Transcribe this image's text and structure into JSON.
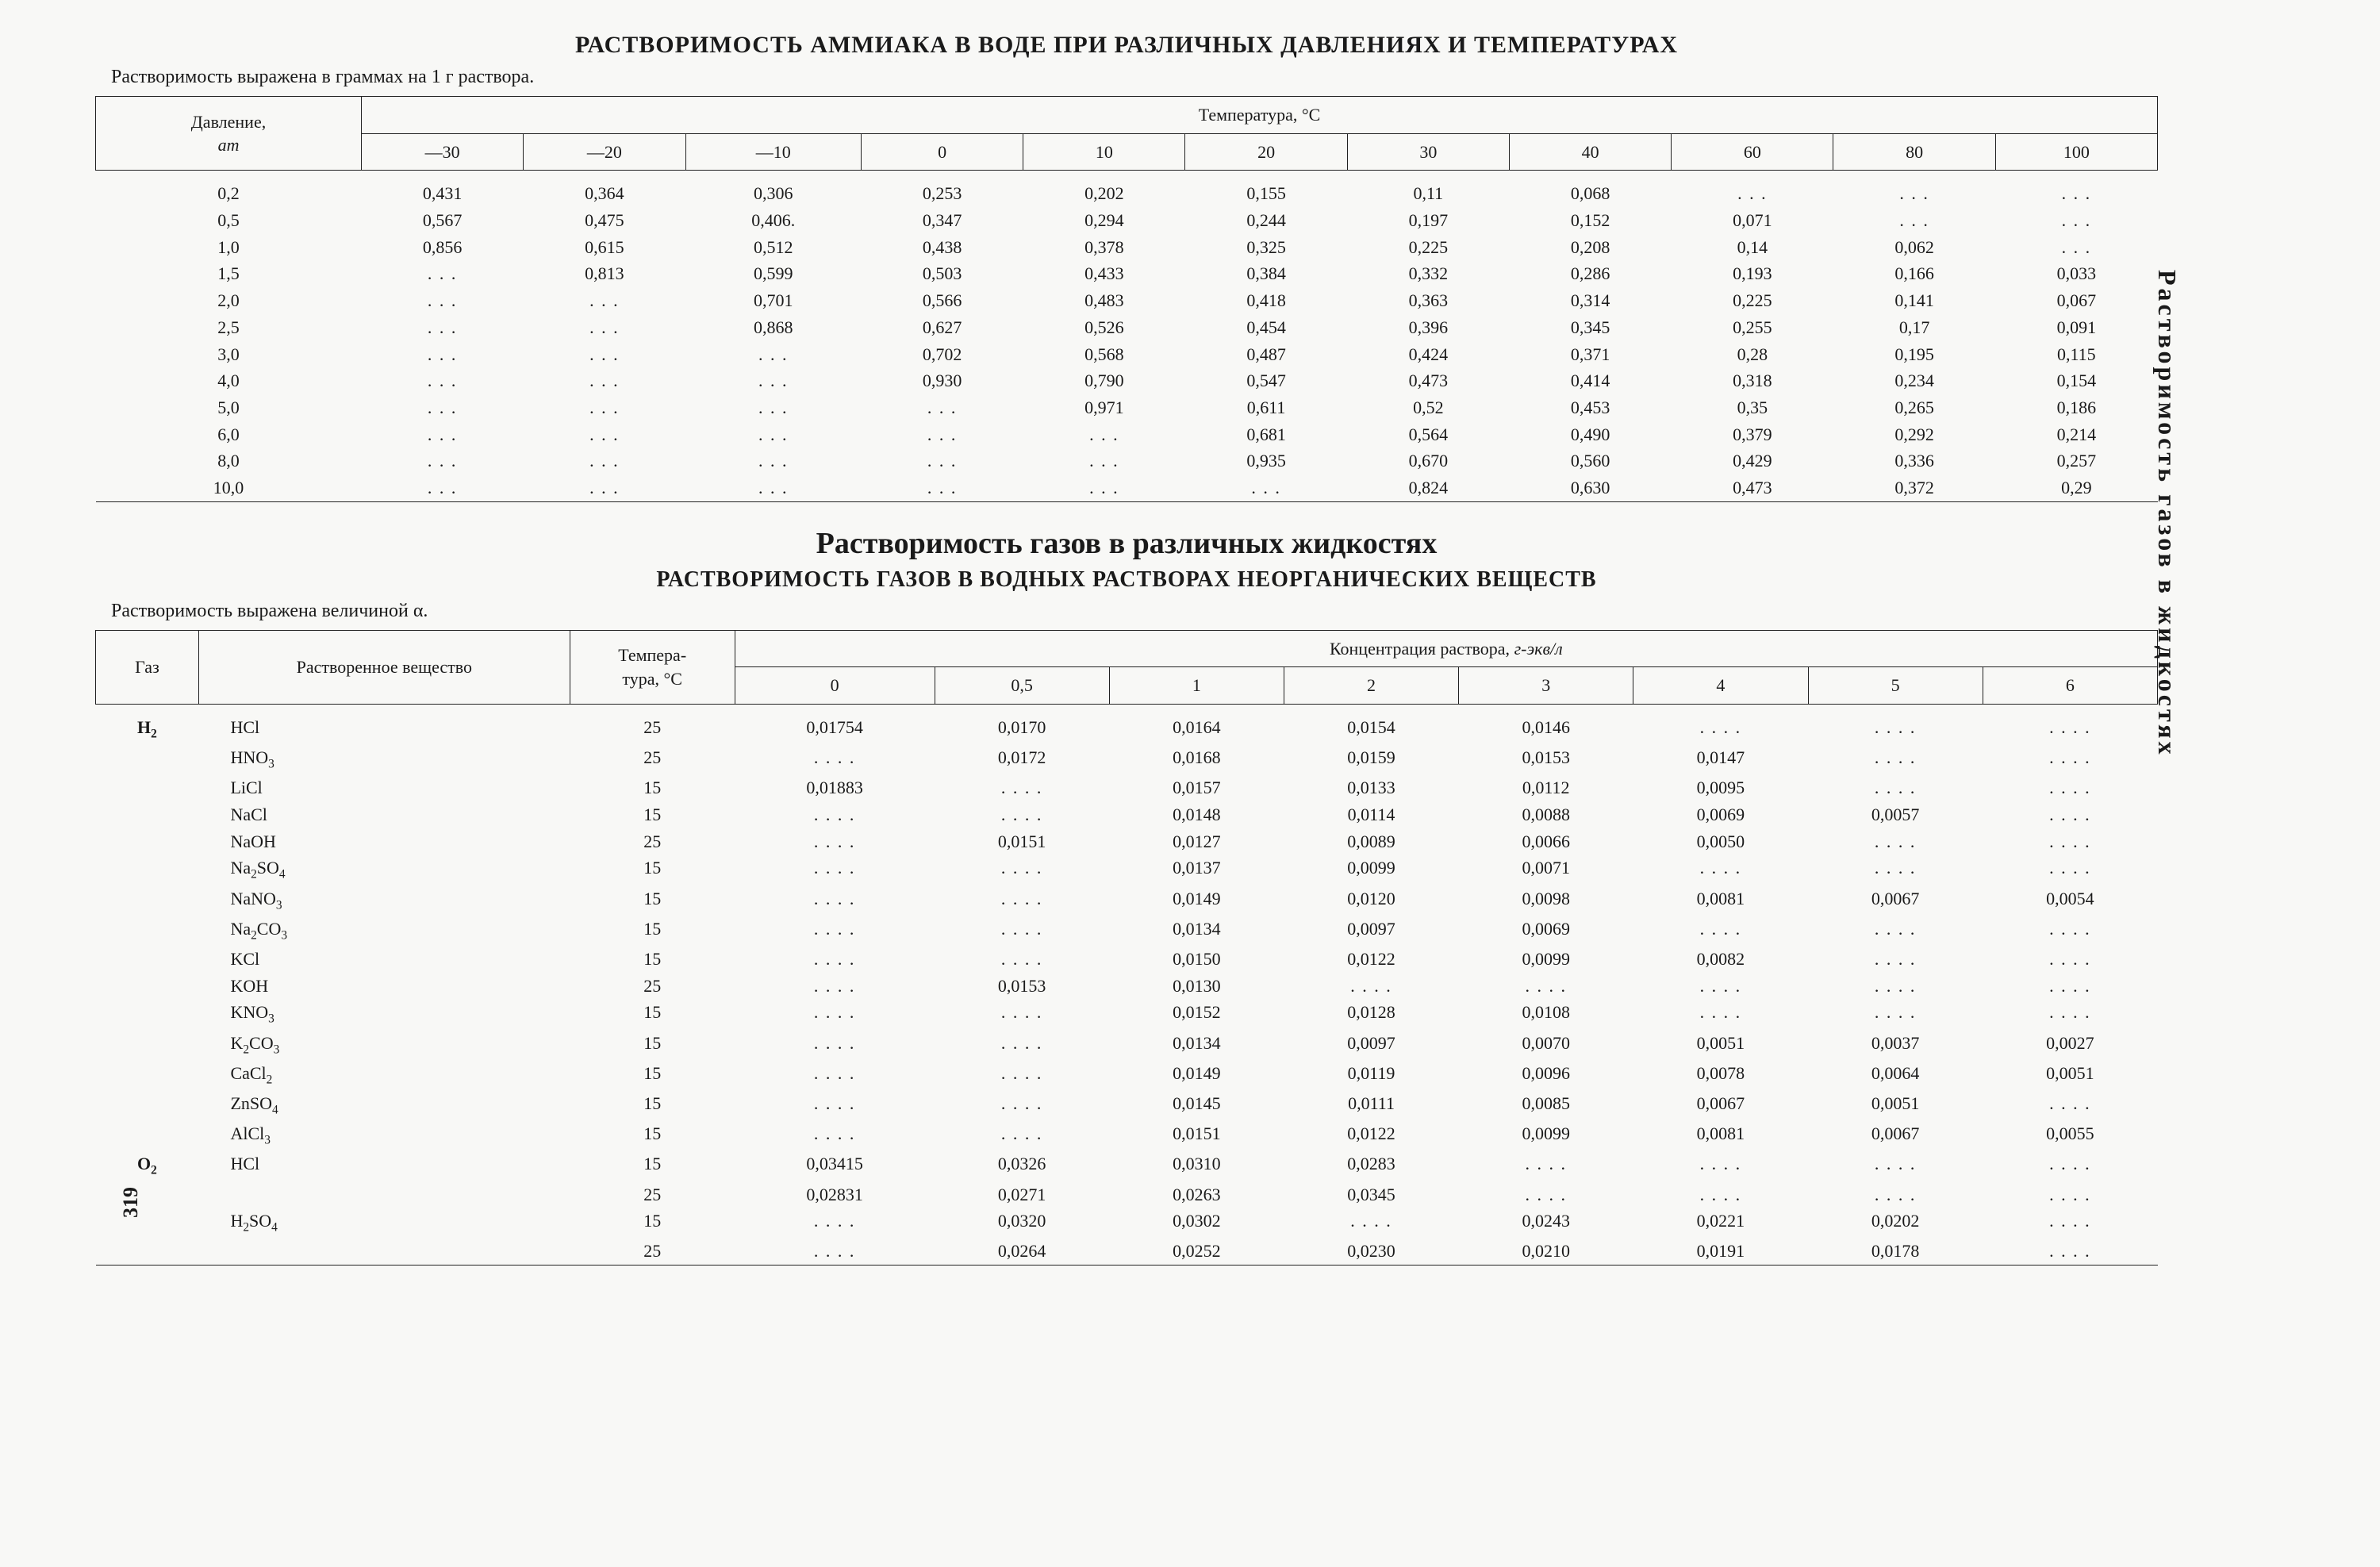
{
  "page_number": "319",
  "vertical_margin_text": "Растворимость газов в жидкостях",
  "table1": {
    "title": "РАСТВОРИМОСТЬ АММИАКА В ВОДЕ ПРИ РАЗЛИЧНЫХ ДАВЛЕНИЯХ И ТЕМПЕРАТУРАХ",
    "subtitle": "Растворимость выражена в граммах на 1 г раствора.",
    "header_row_label": "Давление, ат",
    "header_span_label": "Температура, °C",
    "temp_columns": [
      "—30",
      "—20",
      "—10",
      "0",
      "10",
      "20",
      "30",
      "40",
      "60",
      "80",
      "100"
    ],
    "pressures": [
      "0,2",
      "0,5",
      "1,0",
      "1,5",
      "2,0",
      "2,5",
      "3,0",
      "4,0",
      "5,0",
      "6,0",
      "8,0",
      "10,0"
    ],
    "rows": [
      [
        "0,431",
        "0,364",
        "0,306",
        "0,253",
        "0,202",
        "0,155",
        "0,11",
        "0,068",
        ". . .",
        ". . .",
        ". . ."
      ],
      [
        "0,567",
        "0,475",
        "0,406.",
        "0,347",
        "0,294",
        "0,244",
        "0,197",
        "0,152",
        "0,071",
        ". . .",
        ". . ."
      ],
      [
        "0,856",
        "0,615",
        "0,512",
        "0,438",
        "0,378",
        "0,325",
        "0,225",
        "0,208",
        "0,14",
        "0,062",
        ". . ."
      ],
      [
        ". . .",
        "0,813",
        "0,599",
        "0,503",
        "0,433",
        "0,384",
        "0,332",
        "0,286",
        "0,193",
        "0,166",
        "0,033"
      ],
      [
        ". . .",
        ". . .",
        "0,701",
        "0,566",
        "0,483",
        "0,418",
        "0,363",
        "0,314",
        "0,225",
        "0,141",
        "0,067"
      ],
      [
        ". . .",
        ". . .",
        "0,868",
        "0,627",
        "0,526",
        "0,454",
        "0,396",
        "0,345",
        "0,255",
        "0,17",
        "0,091"
      ],
      [
        ". . .",
        ". . .",
        ". . .",
        "0,702",
        "0,568",
        "0,487",
        "0,424",
        "0,371",
        "0,28",
        "0,195",
        "0,115"
      ],
      [
        ". . .",
        ". . .",
        ". . .",
        "0,930",
        "0,790",
        "0,547",
        "0,473",
        "0,414",
        "0,318",
        "0,234",
        "0,154"
      ],
      [
        ". . .",
        ". . .",
        ". . .",
        ". . .",
        "0,971",
        "0,611",
        "0,52",
        "0,453",
        "0,35",
        "0,265",
        "0,186"
      ],
      [
        ". . .",
        ". . .",
        ". . .",
        ". . .",
        ". . .",
        "0,681",
        "0,564",
        "0,490",
        "0,379",
        "0,292",
        "0,214"
      ],
      [
        ". . .",
        ". . .",
        ". . .",
        ". . .",
        ". . .",
        "0,935",
        "0,670",
        "0,560",
        "0,429",
        "0,336",
        "0,257"
      ],
      [
        ". . .",
        ". . .",
        ". . .",
        ". . .",
        ". . .",
        ". . .",
        "0,824",
        "0,630",
        "0,473",
        "0,372",
        "0,29"
      ]
    ]
  },
  "table2": {
    "section_title_large": "Растворимость газов в различных жидкостях",
    "section_title_medium": "РАСТВОРИМОСТЬ ГАЗОВ В ВОДНЫХ РАСТВОРАХ НЕОРГАНИЧЕСКИХ ВЕЩЕСТВ",
    "subtitle": "Растворимость выражена величиной α.",
    "col_gas": "Газ",
    "col_solute": "Растворенное вещество",
    "col_temp": "Темпера-\nтура, °C",
    "col_conc_span": "Концентрация раствора, г-экв/л",
    "conc_columns": [
      "0",
      "0,5",
      "1",
      "2",
      "3",
      "4",
      "5",
      "6"
    ],
    "rows": [
      {
        "gas": "H₂",
        "sol": "HCl",
        "temp": "25",
        "vals": [
          "0,01754",
          "0,0170",
          "0,0164",
          "0,0154",
          "0,0146",
          ". . . .",
          ". . . .",
          ". . . ."
        ]
      },
      {
        "gas": "",
        "sol": "HNO₃",
        "temp": "25",
        "vals": [
          ". . . .",
          "0,0172",
          "0,0168",
          "0,0159",
          "0,0153",
          "0,0147",
          ". . . .",
          ". . . ."
        ]
      },
      {
        "gas": "",
        "sol": "LiCl",
        "temp": "15",
        "vals": [
          "0,01883",
          ". . . .",
          "0,0157",
          "0,0133",
          "0,0112",
          "0,0095",
          ". . . .",
          ". . . ."
        ]
      },
      {
        "gas": "",
        "sol": "NaCl",
        "temp": "15",
        "vals": [
          ". . . .",
          ". . . .",
          "0,0148",
          "0,0114",
          "0,0088",
          "0,0069",
          "0,0057",
          ". . . ."
        ]
      },
      {
        "gas": "",
        "sol": "NaOH",
        "temp": "25",
        "vals": [
          ". . . .",
          "0,0151",
          "0,0127",
          "0,0089",
          "0,0066",
          "0,0050",
          ". . . .",
          ". . . ."
        ]
      },
      {
        "gas": "",
        "sol": "Na₂SO₄",
        "temp": "15",
        "vals": [
          ". . . .",
          ". . . .",
          "0,0137",
          "0,0099",
          "0,0071",
          ". . . .",
          ". . . .",
          ". . . ."
        ]
      },
      {
        "gas": "",
        "sol": "NaNO₃",
        "temp": "15",
        "vals": [
          ". . . .",
          ". . . .",
          "0,0149",
          "0,0120",
          "0,0098",
          "0,0081",
          "0,0067",
          "0,0054"
        ]
      },
      {
        "gas": "",
        "sol": "Na₂CO₃",
        "temp": "15",
        "vals": [
          ". . . .",
          ". . . .",
          "0,0134",
          "0,0097",
          "0,0069",
          ". . . .",
          ". . . .",
          ". . . ."
        ]
      },
      {
        "gas": "",
        "sol": "KCl",
        "temp": "15",
        "vals": [
          ". . . .",
          ". . . .",
          "0,0150",
          "0,0122",
          "0,0099",
          "0,0082",
          ". . . .",
          ". . . ."
        ]
      },
      {
        "gas": "",
        "sol": "KOH",
        "temp": "25",
        "vals": [
          ". . . .",
          "0,0153",
          "0,0130",
          ". . . .",
          ". . . .",
          ". . . .",
          ". . . .",
          ". . . ."
        ]
      },
      {
        "gas": "",
        "sol": "KNO₃",
        "temp": "15",
        "vals": [
          ". . . .",
          ". . . .",
          "0,0152",
          "0,0128",
          "0,0108",
          ". . . .",
          ". . . .",
          ". . . ."
        ]
      },
      {
        "gas": "",
        "sol": "K₂CO₃",
        "temp": "15",
        "vals": [
          ". . . .",
          ". . . .",
          "0,0134",
          "0,0097",
          "0,0070",
          "0,0051",
          "0,0037",
          "0,0027"
        ]
      },
      {
        "gas": "",
        "sol": "CaCl₂",
        "temp": "15",
        "vals": [
          ". . . .",
          ". . . .",
          "0,0149",
          "0,0119",
          "0,0096",
          "0,0078",
          "0,0064",
          "0,0051"
        ]
      },
      {
        "gas": "",
        "sol": "ZnSO₄",
        "temp": "15",
        "vals": [
          ". . . .",
          ". . . .",
          "0,0145",
          "0,0111",
          "0,0085",
          "0,0067",
          "0,0051",
          ". . . ."
        ]
      },
      {
        "gas": "",
        "sol": "AlCl₃",
        "temp": "15",
        "vals": [
          ". . . .",
          ". . . .",
          "0,0151",
          "0,0122",
          "0,0099",
          "0,0081",
          "0,0067",
          "0,0055"
        ]
      },
      {
        "gas": "O₂",
        "sol": "HCl",
        "temp": "15",
        "vals": [
          "0,03415",
          "0,0326",
          "0,0310",
          "0,0283",
          ". . . .",
          ". . . .",
          ". . . .",
          ". . . ."
        ]
      },
      {
        "gas": "",
        "sol": "",
        "temp": "25",
        "vals": [
          "0,02831",
          "0,0271",
          "0,0263",
          "0,0345",
          ". . . .",
          ". . . .",
          ". . . .",
          ". . . ."
        ]
      },
      {
        "gas": "",
        "sol": "H₂SO₄",
        "temp": "15",
        "vals": [
          ". . . .",
          "0,0320",
          "0,0302",
          ". . . .",
          "0,0243",
          "0,0221",
          "0,0202",
          ". . . ."
        ]
      },
      {
        "gas": "",
        "sol": "",
        "temp": "25",
        "vals": [
          ". . . .",
          "0,0264",
          "0,0252",
          "0,0230",
          "0,0210",
          "0,0191",
          "0,0178",
          ". . . ."
        ]
      }
    ]
  }
}
